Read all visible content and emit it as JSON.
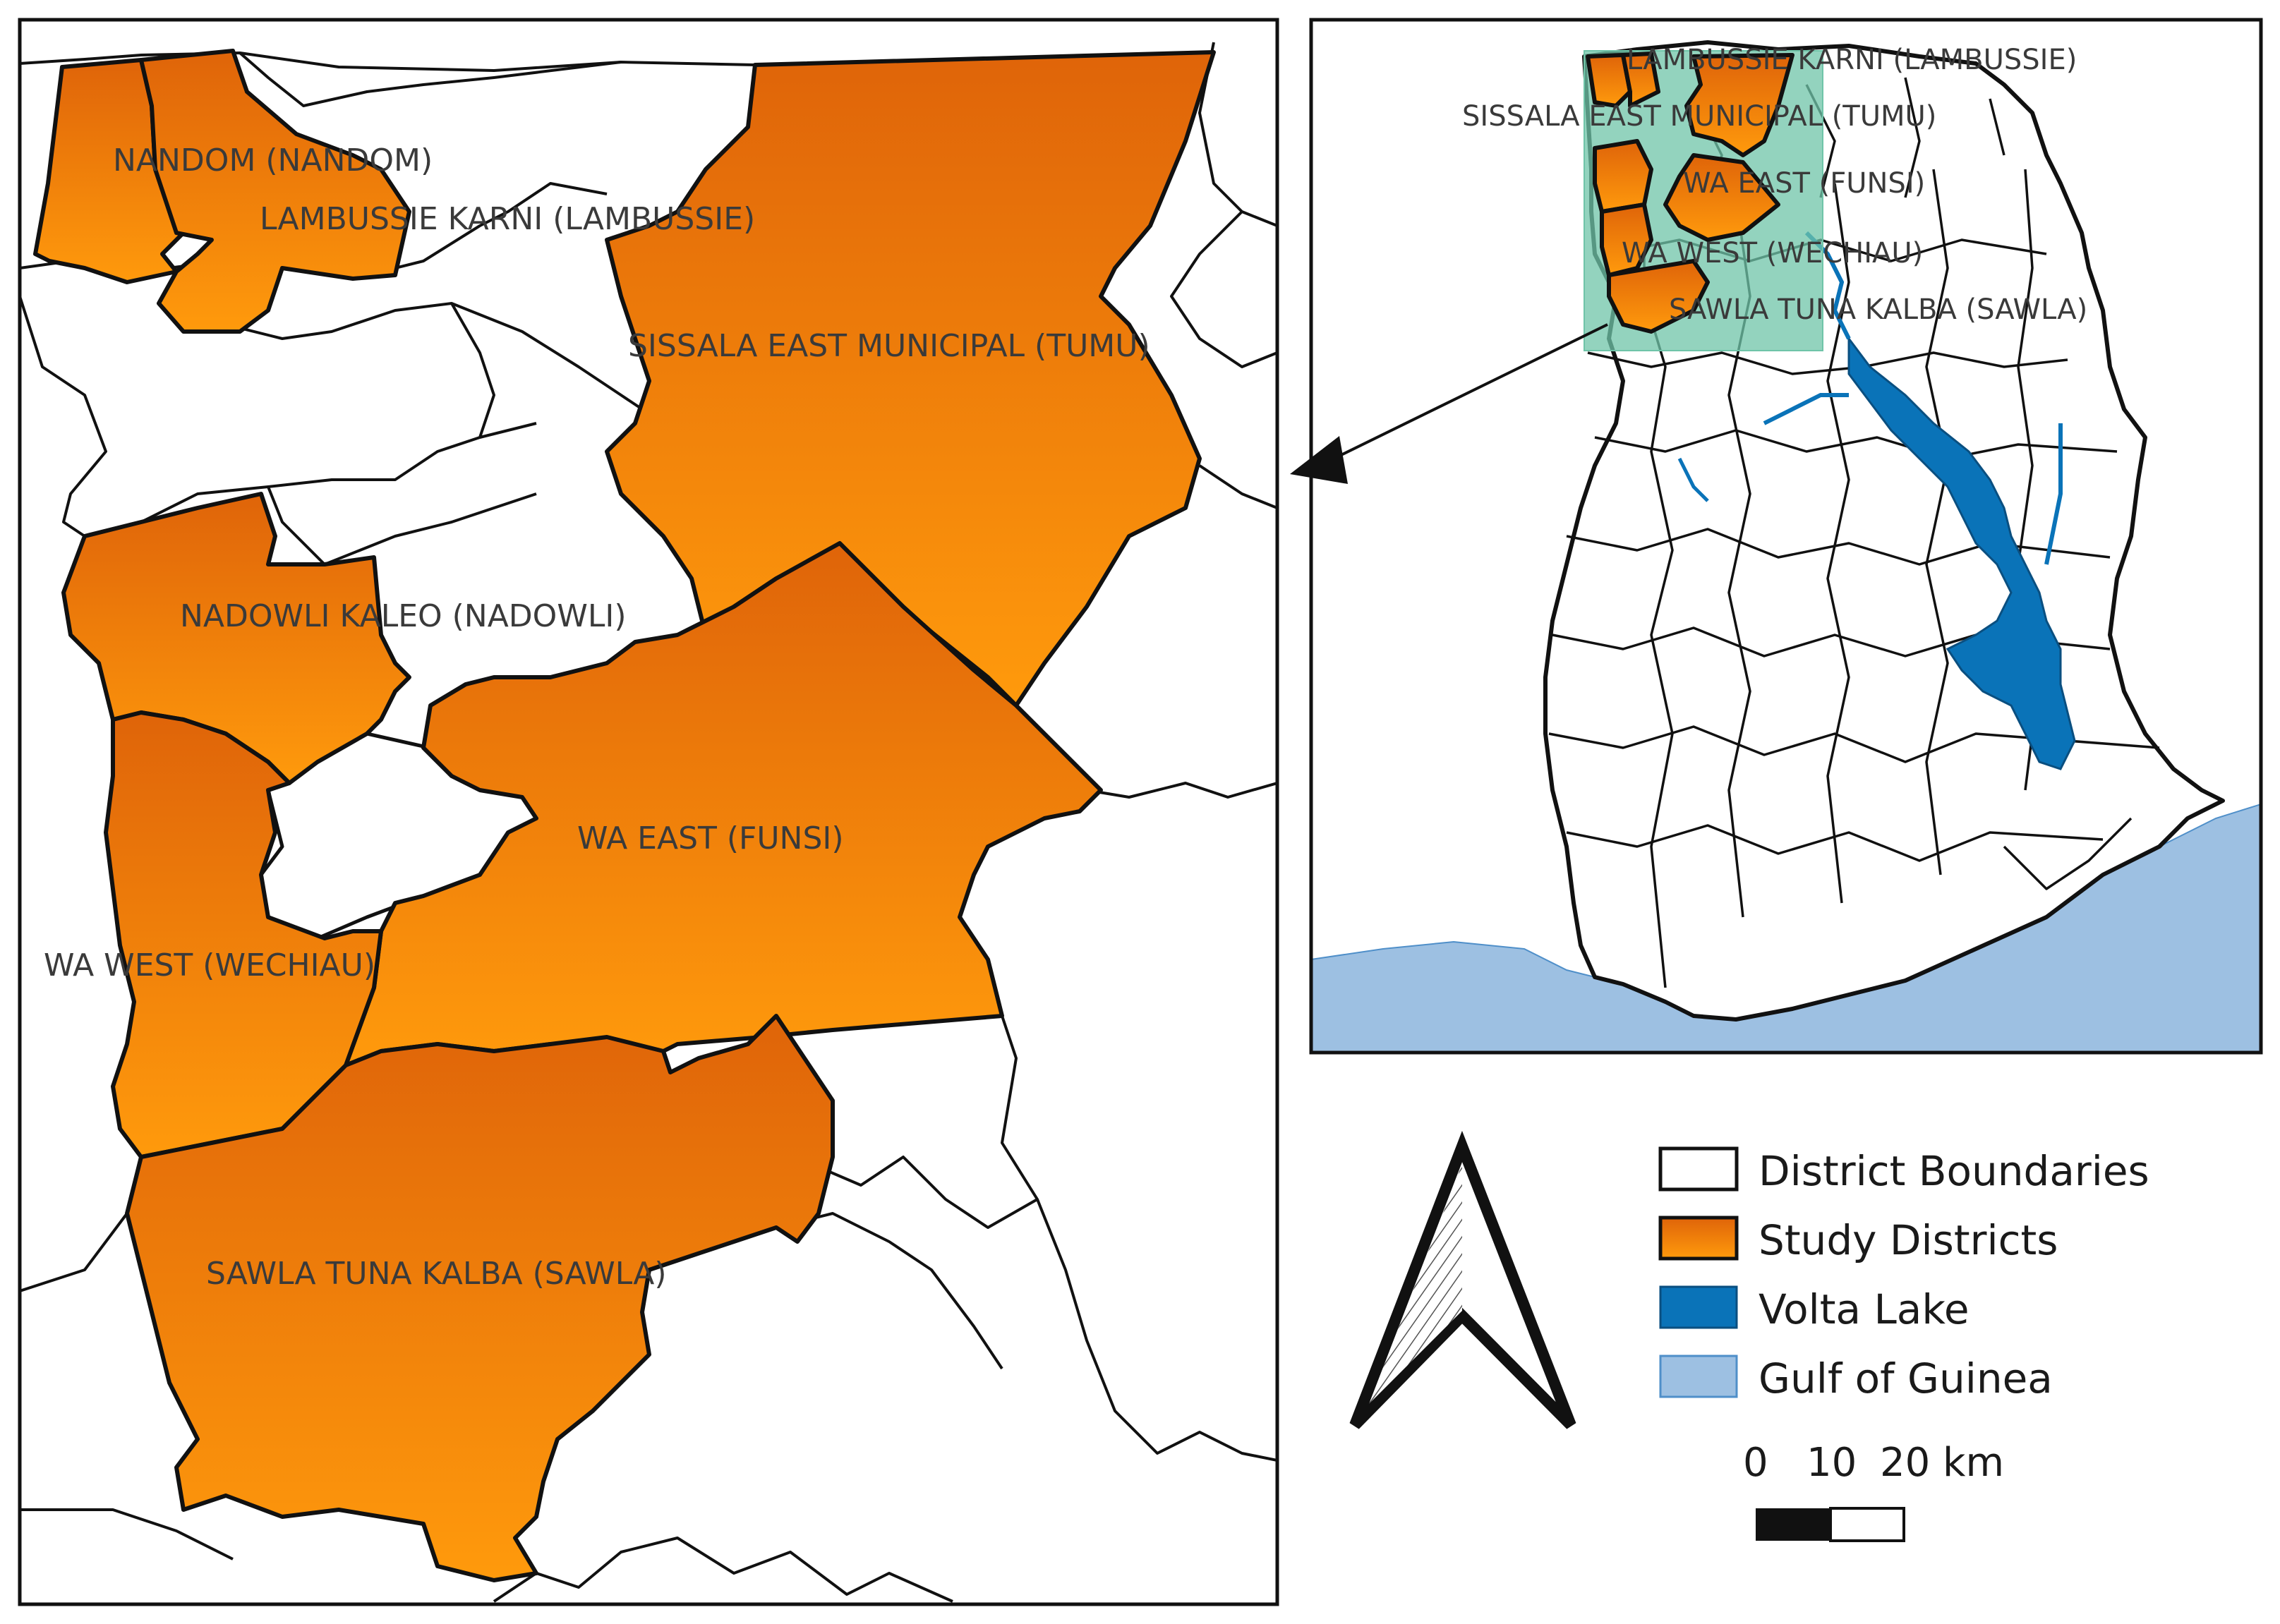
{
  "main_map": {
    "district_labels": [
      "NANDOM (NANDOM)",
      "LAMBUSSIE KARNI (LAMBUSSIE)",
      "SISSALA EAST MUNICIPAL (TUMU)",
      "NADOWLI KALEO (NADOWLI)",
      "WA EAST (FUNSI)",
      "WA WEST (WECHIAU)",
      "SAWLA TUNA KALBA (SAWLA)"
    ]
  },
  "inset_map": {
    "district_labels": [
      "LAMBUSSIE KARNI (LAMBUSSIE)",
      "SISSALA EAST MUNICIPAL (TUMU)",
      "WA EAST (FUNSI)",
      "WA WEST (WECHIAU)",
      "SAWLA TUNA KALBA (SAWLA)"
    ]
  },
  "legend": {
    "items": [
      {
        "label": "District Boundaries",
        "color": "#ffffff"
      },
      {
        "label": "Study Districts",
        "color": "#f08a10"
      },
      {
        "label": "Volta Lake",
        "color": "#0a73b8"
      },
      {
        "label": "Gulf of Guinea",
        "color": "#9dc0e2"
      }
    ]
  },
  "scale_bar": {
    "ticks": [
      "0",
      "10",
      "20 km"
    ]
  },
  "north_arrow": {
    "icon": "north-arrow-icon"
  },
  "colors": {
    "study_top": "#e0650a",
    "study_bottom": "#ff9a0a",
    "lake": "#0a73b8",
    "sea": "#9dc0e2",
    "extent_box": "#6fc4a8"
  }
}
